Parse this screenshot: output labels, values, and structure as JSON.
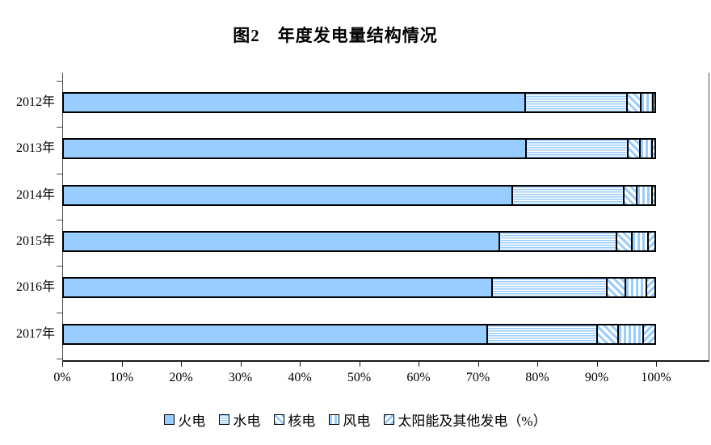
{
  "chart_data": {
    "type": "bar",
    "variant": "horizontal-stacked",
    "title": "图2　年度发电量结构情况",
    "categories": [
      "2012年",
      "2013年",
      "2014年",
      "2015年",
      "2016年",
      "2017年"
    ],
    "series": [
      {
        "name": "火电",
        "pattern": "solid",
        "values": [
          78.0,
          78.1,
          75.8,
          73.6,
          72.3,
          71.6
        ]
      },
      {
        "name": "水电",
        "pattern": "hstripe",
        "values": [
          17.2,
          17.3,
          18.8,
          19.8,
          19.5,
          18.6
        ]
      },
      {
        "name": "核电",
        "pattern": "dstripe1",
        "values": [
          2.3,
          2.0,
          2.2,
          2.6,
          3.2,
          3.5
        ]
      },
      {
        "name": "风电",
        "pattern": "vstripe",
        "values": [
          2.1,
          2.1,
          2.7,
          2.8,
          3.5,
          4.2
        ]
      },
      {
        "name": "太阳能及其他发电（%）",
        "pattern": "dstripe2",
        "values": [
          0.4,
          0.5,
          0.5,
          1.2,
          1.5,
          2.1
        ]
      }
    ],
    "x_tick_labels": [
      "0%",
      "10%",
      "20%",
      "30%",
      "40%",
      "50%",
      "60%",
      "70%",
      "80%",
      "90%",
      "100%"
    ],
    "xlim": [
      0,
      100
    ],
    "legend_position": "bottom",
    "grid": false,
    "colors": {
      "bar_fill": "#99CCFF",
      "segment_border": "#000000",
      "axis_line": "#4d4d4d",
      "text": "#000000",
      "background": "#ffffff"
    }
  }
}
